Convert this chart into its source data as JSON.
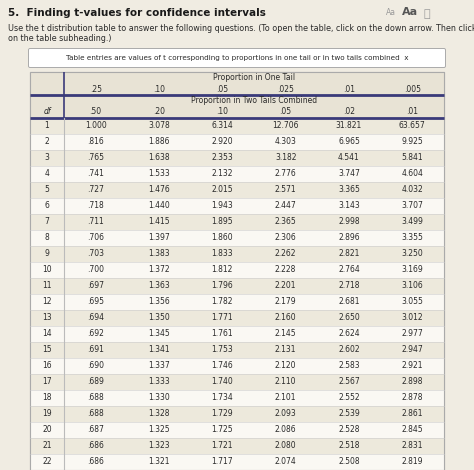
{
  "title": "5.  Finding t-values for confidence intervals",
  "subtitle_line1": "Use the t distribution table to answer the following questions. (To open the table, click on the down arrow. Then click",
  "subtitle_line2": "on the table subheading.)",
  "table_note": "Table entries are values of t corresponding to proportions in one tail or in two tails combined  x",
  "one_tail_label": "Proportion in One Tail",
  "one_tail_cols": [
    ".25",
    ".10",
    ".05",
    ".025",
    ".01",
    ".005"
  ],
  "two_tail_label": "Proportion in Two Tails Combined",
  "two_tail_cols": [
    ".50",
    ".20",
    ".10",
    ".05",
    ".02",
    ".01"
  ],
  "df_label": "df",
  "rows": [
    [
      1,
      "1.000",
      "3.078",
      "6.314",
      "12.706",
      "31.821",
      "63.657"
    ],
    [
      2,
      ".816",
      "1.886",
      "2.920",
      "4.303",
      "6.965",
      "9.925"
    ],
    [
      3,
      ".765",
      "1.638",
      "2.353",
      "3.182",
      "4.541",
      "5.841"
    ],
    [
      4,
      ".741",
      "1.533",
      "2.132",
      "2.776",
      "3.747",
      "4.604"
    ],
    [
      5,
      ".727",
      "1.476",
      "2.015",
      "2.571",
      "3.365",
      "4.032"
    ],
    [
      6,
      ".718",
      "1.440",
      "1.943",
      "2.447",
      "3.143",
      "3.707"
    ],
    [
      7,
      ".711",
      "1.415",
      "1.895",
      "2.365",
      "2.998",
      "3.499"
    ],
    [
      8,
      ".706",
      "1.397",
      "1.860",
      "2.306",
      "2.896",
      "3.355"
    ],
    [
      9,
      ".703",
      "1.383",
      "1.833",
      "2.262",
      "2.821",
      "3.250"
    ],
    [
      10,
      ".700",
      "1.372",
      "1.812",
      "2.228",
      "2.764",
      "3.169"
    ],
    [
      11,
      ".697",
      "1.363",
      "1.796",
      "2.201",
      "2.718",
      "3.106"
    ],
    [
      12,
      ".695",
      "1.356",
      "1.782",
      "2.179",
      "2.681",
      "3.055"
    ],
    [
      13,
      ".694",
      "1.350",
      "1.771",
      "2.160",
      "2.650",
      "3.012"
    ],
    [
      14,
      ".692",
      "1.345",
      "1.761",
      "2.145",
      "2.624",
      "2.977"
    ],
    [
      15,
      ".691",
      "1.341",
      "1.753",
      "2.131",
      "2.602",
      "2.947"
    ],
    [
      16,
      ".690",
      "1.337",
      "1.746",
      "2.120",
      "2.583",
      "2.921"
    ],
    [
      17,
      ".689",
      "1.333",
      "1.740",
      "2.110",
      "2.567",
      "2.898"
    ],
    [
      18,
      ".688",
      "1.330",
      "1.734",
      "2.101",
      "2.552",
      "2.878"
    ],
    [
      19,
      ".688",
      "1.328",
      "1.729",
      "2.093",
      "2.539",
      "2.861"
    ],
    [
      20,
      ".687",
      "1.325",
      "1.725",
      "2.086",
      "2.528",
      "2.845"
    ],
    [
      21,
      ".686",
      "1.323",
      "1.721",
      "2.080",
      "2.518",
      "2.831"
    ],
    [
      22,
      ".686",
      "1.321",
      "1.717",
      "2.074",
      "2.508",
      "2.819"
    ]
  ],
  "bg_color": "#f0ece2",
  "table_bg": "#faf8f3",
  "header_bg": "#e8e3d5",
  "border_color": "#3a3a7a",
  "text_color": "#2a2a2a",
  "title_color": "#1a1a1a",
  "row_even_color": "#ede9dc",
  "row_odd_color": "#faf8f3",
  "note_border": "#aaaaaa",
  "thin_line_color": "#cccccc",
  "aa_small_color": "#999999",
  "aa_large_color": "#555555"
}
